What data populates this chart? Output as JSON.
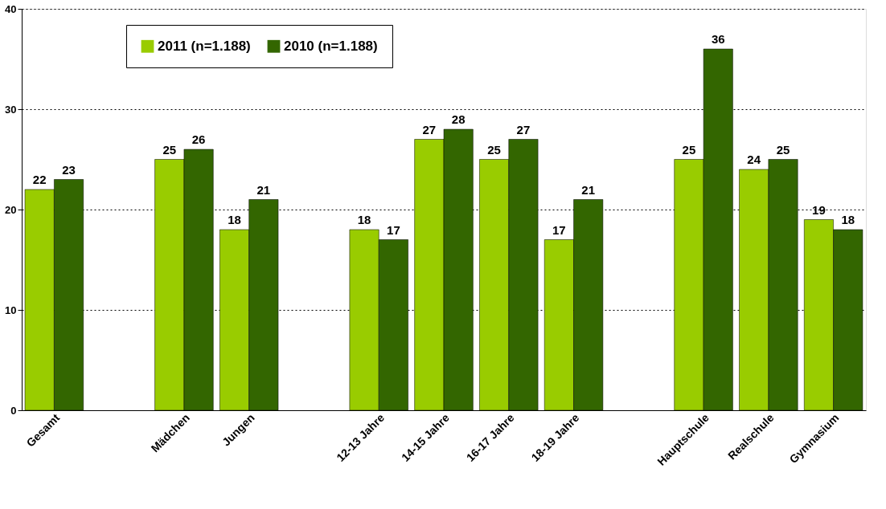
{
  "chart_data": {
    "type": "bar",
    "categories": [
      "Gesamt",
      null,
      "Mädchen",
      "Jungen",
      null,
      "12-13 Jahre",
      "14-15 Jahre",
      "16-17 Jahre",
      "18-19 Jahre",
      null,
      "Hauptschule",
      "Realschule",
      "Gymnasium"
    ],
    "series": [
      {
        "name": "2011 (n=1.188)",
        "color": "#99cc00",
        "values": [
          22,
          null,
          25,
          18,
          null,
          18,
          27,
          25,
          17,
          null,
          25,
          24,
          19
        ]
      },
      {
        "name": "2010 (n=1.188)",
        "color": "#336600",
        "values": [
          23,
          null,
          26,
          21,
          null,
          17,
          28,
          27,
          21,
          null,
          36,
          25,
          18
        ]
      }
    ],
    "ylim": [
      0,
      40
    ],
    "yticks": [
      0,
      10,
      20,
      30,
      40
    ],
    "grid": "y",
    "legend": "top left",
    "data_labels": true
  }
}
